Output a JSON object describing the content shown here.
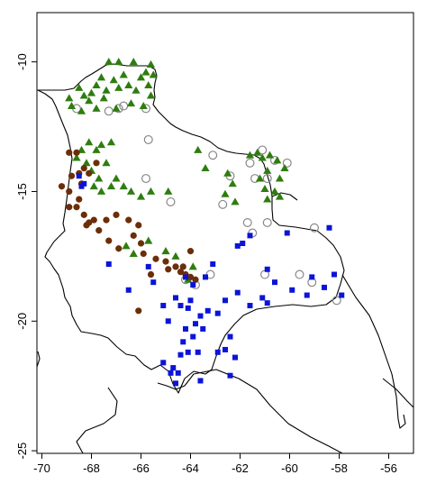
{
  "chart_data": {
    "type": "scatter",
    "title": "",
    "xlabel": "",
    "ylabel": "",
    "xlim": [
      -70.2,
      -55
    ],
    "ylim": [
      -25.1,
      -8.1
    ],
    "x_ticks": [
      -70,
      -68,
      -66,
      -64,
      -62,
      -60,
      -58,
      -56
    ],
    "y_ticks": [
      -10,
      -15,
      -20,
      -25
    ],
    "x_tick_labels": [
      "-70",
      "-68",
      "-66",
      "-64",
      "-62",
      "-60",
      "-58",
      "-56"
    ],
    "y_tick_labels": [
      "-10",
      "-15",
      "-20",
      "-25"
    ],
    "grid": false,
    "legend": "none",
    "basemap": "Bolivia and neighbouring country borders",
    "series": [
      {
        "marker": "triangle",
        "color": "#2e7d0f",
        "points": [
          [
            -67.3,
            -10.0
          ],
          [
            -66.9,
            -10.0
          ],
          [
            -66.3,
            -10.0
          ],
          [
            -66.7,
            -10.5
          ],
          [
            -66.0,
            -10.6
          ],
          [
            -65.8,
            -10.4
          ],
          [
            -67.1,
            -10.7
          ],
          [
            -67.6,
            -10.6
          ],
          [
            -67.8,
            -10.9
          ],
          [
            -68.0,
            -11.2
          ],
          [
            -68.5,
            -11.0
          ],
          [
            -68.1,
            -11.5
          ],
          [
            -67.4,
            -11.1
          ],
          [
            -66.9,
            -11.0
          ],
          [
            -66.5,
            -10.9
          ],
          [
            -66.2,
            -11.1
          ],
          [
            -65.6,
            -10.1
          ],
          [
            -65.5,
            -10.5
          ],
          [
            -65.7,
            -10.9
          ],
          [
            -67.0,
            -11.8
          ],
          [
            -67.8,
            -11.8
          ],
          [
            -68.9,
            -11.4
          ],
          [
            -68.8,
            -11.7
          ],
          [
            -68.4,
            -11.9
          ],
          [
            -67.5,
            -11.4
          ],
          [
            -66.4,
            -11.6
          ],
          [
            -65.9,
            -11.7
          ],
          [
            -65.6,
            -11.3
          ],
          [
            -68.1,
            -13.1
          ],
          [
            -67.6,
            -13.2
          ],
          [
            -67.2,
            -13.1
          ],
          [
            -68.4,
            -13.4
          ],
          [
            -67.8,
            -13.4
          ],
          [
            -68.6,
            -13.7
          ],
          [
            -68.2,
            -13.9
          ],
          [
            -67.4,
            -13.9
          ],
          [
            -68.0,
            -14.2
          ],
          [
            -67.7,
            -14.5
          ],
          [
            -67.9,
            -14.8
          ],
          [
            -67.6,
            -15.0
          ],
          [
            -67.2,
            -14.8
          ],
          [
            -67.0,
            -14.5
          ],
          [
            -66.7,
            -14.8
          ],
          [
            -66.4,
            -15.0
          ],
          [
            -66.0,
            -15.2
          ],
          [
            -65.6,
            -15.0
          ],
          [
            -64.9,
            -15.0
          ],
          [
            -63.7,
            -13.4
          ],
          [
            -63.4,
            -14.1
          ],
          [
            -62.5,
            -14.3
          ],
          [
            -62.3,
            -14.7
          ],
          [
            -62.6,
            -15.1
          ],
          [
            -62.2,
            -15.4
          ],
          [
            -61.6,
            -13.6
          ],
          [
            -61.3,
            -13.5
          ],
          [
            -61.1,
            -13.7
          ],
          [
            -60.9,
            -14.2
          ],
          [
            -61.2,
            -14.5
          ],
          [
            -61.0,
            -14.9
          ],
          [
            -60.6,
            -15.0
          ],
          [
            -60.9,
            -15.3
          ],
          [
            -60.4,
            -14.5
          ],
          [
            -60.8,
            -13.6
          ],
          [
            -60.5,
            -13.8
          ],
          [
            -60.2,
            -14.1
          ],
          [
            -60.4,
            -15.2
          ],
          [
            -65.7,
            -16.9
          ],
          [
            -66.3,
            -17.4
          ],
          [
            -65.0,
            -17.3
          ],
          [
            -64.6,
            -17.5
          ],
          [
            -63.9,
            -17.9
          ],
          [
            -64.1,
            -18.4
          ],
          [
            -66.6,
            -17.1
          ],
          [
            -68.3,
            -11.3
          ]
        ]
      },
      {
        "marker": "circle",
        "color": "#6b2e08",
        "points": [
          [
            -68.3,
            -14.1
          ],
          [
            -68.1,
            -14.3
          ],
          [
            -67.8,
            -13.9
          ],
          [
            -68.5,
            -14.3
          ],
          [
            -68.9,
            -13.5
          ],
          [
            -68.6,
            -13.5
          ],
          [
            -68.8,
            -14.4
          ],
          [
            -68.4,
            -14.7
          ],
          [
            -69.2,
            -14.8
          ],
          [
            -68.9,
            -15.0
          ],
          [
            -68.5,
            -15.3
          ],
          [
            -68.9,
            -15.6
          ],
          [
            -68.6,
            -15.6
          ],
          [
            -68.3,
            -15.9
          ],
          [
            -68.1,
            -16.2
          ],
          [
            -67.9,
            -16.1
          ],
          [
            -67.7,
            -16.5
          ],
          [
            -67.4,
            -16.1
          ],
          [
            -67.0,
            -15.9
          ],
          [
            -66.5,
            -16.1
          ],
          [
            -66.1,
            -16.3
          ],
          [
            -66.3,
            -16.7
          ],
          [
            -67.3,
            -16.9
          ],
          [
            -66.9,
            -17.2
          ],
          [
            -66.0,
            -17.0
          ],
          [
            -65.4,
            -17.6
          ],
          [
            -65.0,
            -17.7
          ],
          [
            -64.6,
            -17.9
          ],
          [
            -64.9,
            -18.0
          ],
          [
            -64.4,
            -18.1
          ],
          [
            -64.2,
            -18.2
          ],
          [
            -64.0,
            -18.3
          ],
          [
            -63.8,
            -18.4
          ],
          [
            -64.3,
            -17.9
          ],
          [
            -65.6,
            -18.2
          ],
          [
            -66.1,
            -19.6
          ],
          [
            -64.0,
            -17.3
          ],
          [
            -65.9,
            -17.4
          ],
          [
            -68.2,
            -16.3
          ]
        ]
      },
      {
        "marker": "square",
        "color": "#0a14d8",
        "points": [
          [
            -68.5,
            -14.4
          ],
          [
            -68.3,
            -14.7
          ],
          [
            -68.4,
            -14.8
          ],
          [
            -67.3,
            -17.8
          ],
          [
            -65.7,
            -17.9
          ],
          [
            -66.5,
            -18.8
          ],
          [
            -65.5,
            -18.5
          ],
          [
            -64.2,
            -18.3
          ],
          [
            -63.9,
            -18.6
          ],
          [
            -64.0,
            -19.2
          ],
          [
            -64.6,
            -19.1
          ],
          [
            -64.4,
            -19.4
          ],
          [
            -64.1,
            -19.5
          ],
          [
            -63.6,
            -19.8
          ],
          [
            -63.3,
            -19.6
          ],
          [
            -62.6,
            -19.2
          ],
          [
            -62.1,
            -18.9
          ],
          [
            -61.6,
            -19.4
          ],
          [
            -61.1,
            -19.1
          ],
          [
            -60.9,
            -19.3
          ],
          [
            -59.3,
            -19.0
          ],
          [
            -58.6,
            -18.7
          ],
          [
            -58.2,
            -18.2
          ],
          [
            -57.9,
            -19.0
          ],
          [
            -59.1,
            -18.3
          ],
          [
            -59.9,
            -18.8
          ],
          [
            -60.9,
            -18.0
          ],
          [
            -60.6,
            -18.5
          ],
          [
            -61.9,
            -17.0
          ],
          [
            -62.1,
            -17.1
          ],
          [
            -61.6,
            -16.7
          ],
          [
            -60.1,
            -16.6
          ],
          [
            -58.4,
            -16.4
          ],
          [
            -63.1,
            -17.8
          ],
          [
            -63.4,
            -18.3
          ],
          [
            -62.9,
            -19.7
          ],
          [
            -63.8,
            -20.1
          ],
          [
            -64.9,
            -20.0
          ],
          [
            -65.1,
            -19.4
          ],
          [
            -64.2,
            -20.3
          ],
          [
            -63.5,
            -20.3
          ],
          [
            -62.4,
            -20.6
          ],
          [
            -63.9,
            -20.6
          ],
          [
            -64.1,
            -21.2
          ],
          [
            -63.7,
            -21.2
          ],
          [
            -62.6,
            -21.1
          ],
          [
            -62.2,
            -21.4
          ],
          [
            -62.4,
            -22.1
          ],
          [
            -64.8,
            -22.0
          ],
          [
            -64.4,
            -21.3
          ],
          [
            -65.1,
            -21.6
          ],
          [
            -64.7,
            -21.8
          ],
          [
            -64.5,
            -22.0
          ],
          [
            -63.6,
            -22.3
          ],
          [
            -64.6,
            -22.4
          ],
          [
            -64.3,
            -20.8
          ],
          [
            -62.9,
            -21.2
          ]
        ]
      },
      {
        "marker": "open-circle",
        "color": "#888888",
        "points": [
          [
            -68.6,
            -11.8
          ],
          [
            -67.3,
            -11.9
          ],
          [
            -66.9,
            -11.8
          ],
          [
            -65.8,
            -11.8
          ],
          [
            -65.7,
            -13.0
          ],
          [
            -63.1,
            -13.6
          ],
          [
            -61.6,
            -13.9
          ],
          [
            -61.1,
            -13.4
          ],
          [
            -60.6,
            -13.8
          ],
          [
            -60.1,
            -13.9
          ],
          [
            -60.9,
            -14.5
          ],
          [
            -61.4,
            -14.5
          ],
          [
            -62.7,
            -15.5
          ],
          [
            -64.8,
            -15.4
          ],
          [
            -65.8,
            -14.5
          ],
          [
            -61.7,
            -16.2
          ],
          [
            -61.5,
            -16.6
          ],
          [
            -60.9,
            -16.2
          ],
          [
            -61.0,
            -18.2
          ],
          [
            -59.0,
            -16.4
          ],
          [
            -59.1,
            -18.5
          ],
          [
            -59.6,
            -18.2
          ],
          [
            -58.1,
            -19.2
          ],
          [
            -63.8,
            -18.6
          ],
          [
            -63.2,
            -18.2
          ],
          [
            -64.2,
            -18.4
          ],
          [
            -66.7,
            -11.7
          ],
          [
            -62.4,
            -14.4
          ]
        ]
      }
    ]
  }
}
